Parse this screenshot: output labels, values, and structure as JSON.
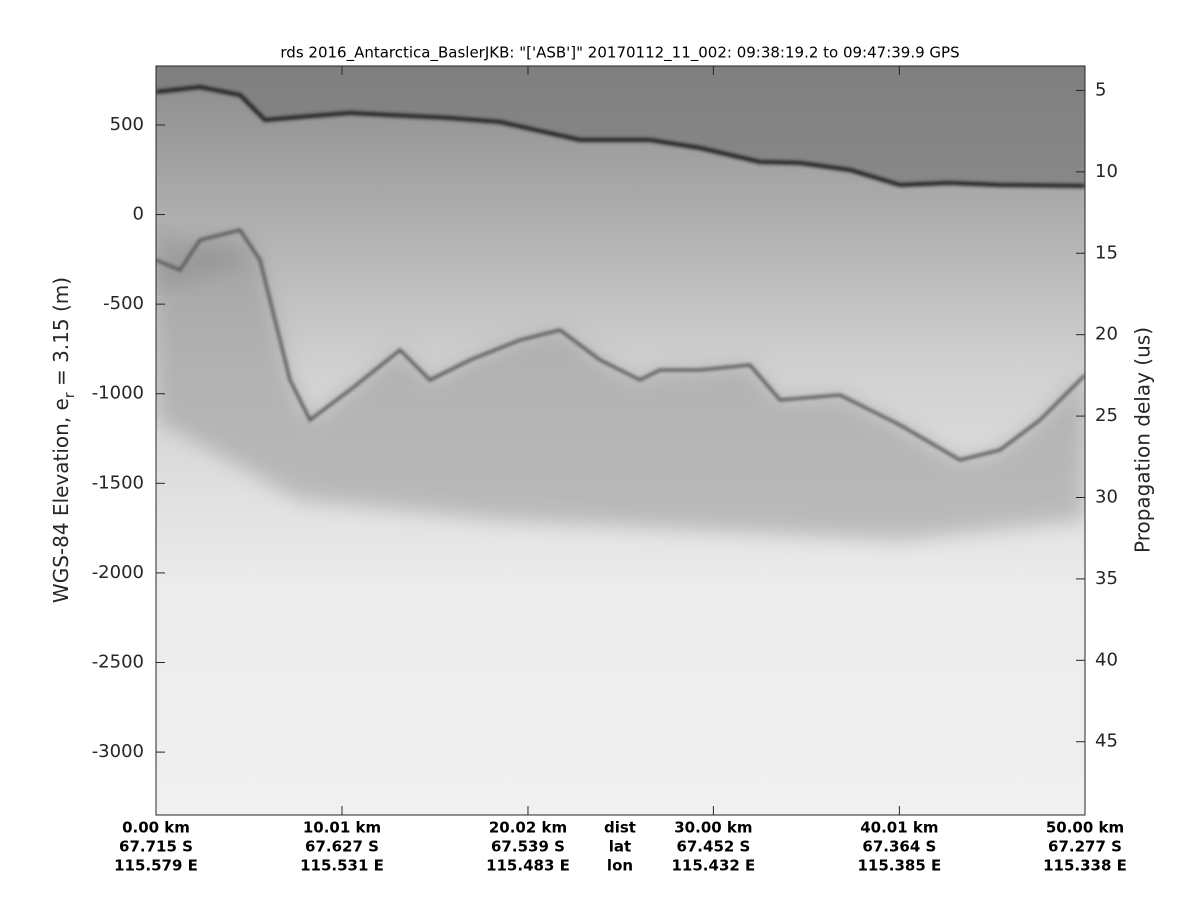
{
  "chart_data": {
    "type": "echogram",
    "title": "rds 2016_Antarctica_BaslerJKB: \"['ASB']\"  20170112_11_002: 09:38:19.2 to 09:47:39.9 GPS",
    "ylabel": [
      "WGS-84 Elevation, e",
      "r",
      " = 3.15 (m)"
    ],
    "y2label": "Propagation delay (us)",
    "ylim": [
      -3351,
      829
    ],
    "yticks": [
      500,
      0,
      -500,
      -1000,
      -1500,
      -2000,
      -2500,
      -3000
    ],
    "y2lim": [
      49.5,
      3.5
    ],
    "y2ticks": [
      5,
      10,
      15,
      20,
      25,
      30,
      35,
      40,
      45
    ],
    "xlim": [
      0,
      50
    ],
    "xticks": [
      {
        "value": 0,
        "label": "0.00 km"
      },
      {
        "value": 10.01,
        "label": "10.01 km"
      },
      {
        "value": 20.02,
        "label": "20.02 km"
      },
      {
        "value": 30,
        "label": "30.00 km"
      },
      {
        "value": 40.01,
        "label": "40.01 km"
      },
      {
        "value": 50,
        "label": "50.00 km"
      }
    ],
    "lat_labels": [
      "67.715 S",
      "67.627 S",
      "67.539 S",
      "67.452 S",
      "67.364 S",
      "67.277 S"
    ],
    "lon_labels": [
      "115.579 E",
      "115.531 E",
      "115.483 E",
      "115.432 E",
      "115.385 E",
      "115.338 E"
    ],
    "row_headers": [
      "dist",
      "lat",
      "lon"
    ]
  }
}
